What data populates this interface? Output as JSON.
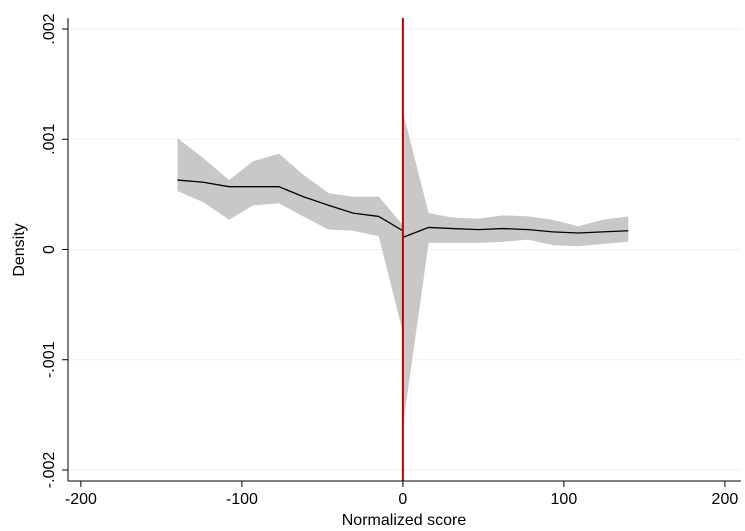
{
  "chart_data": {
    "type": "rd-density",
    "x_label": "Normalized score",
    "y_label": "Density",
    "xlim": [
      -208,
      210
    ],
    "ylim": [
      -0.0021,
      0.0021
    ],
    "xticks": [
      -200,
      -100,
      0,
      100,
      200
    ],
    "yticks": [
      {
        "value": -0.002,
        "label": "-.002"
      },
      {
        "value": -0.001,
        "label": "-.001"
      },
      {
        "value": 0,
        "label": "0"
      },
      {
        "value": 0.001,
        "label": ".001"
      },
      {
        "value": 0.002,
        "label": ".002"
      }
    ],
    "grid": true,
    "line_color": "#000000",
    "band_color": "#c8c8c8",
    "cutoff": 0,
    "cutoff_color": "#c00000",
    "groups": [
      {
        "x": [
          -140,
          -124,
          -108,
          -93,
          -77,
          -62,
          -46,
          -31,
          -15,
          0
        ],
        "values": [
          0.00063,
          0.00061,
          0.00057,
          0.00057,
          0.00057,
          0.00048,
          0.0004,
          0.00033,
          0.0003,
          0.00017
        ],
        "ci_upper": [
          0.00101,
          0.00083,
          0.00063,
          0.0008,
          0.00087,
          0.00068,
          0.00051,
          0.00048,
          0.00048,
          0.00022
        ],
        "ci_lower": [
          0.00053,
          0.00043,
          0.00027,
          0.0004,
          0.00042,
          0.0003,
          0.00018,
          0.00017,
          0.00012,
          -0.00075
        ]
      },
      {
        "x": [
          0,
          16,
          31,
          47,
          62,
          78,
          93,
          109,
          124,
          140
        ],
        "values": [
          0.00011,
          0.0002,
          0.00019,
          0.00018,
          0.00019,
          0.00018,
          0.00016,
          0.00015,
          0.00016,
          0.00017
        ],
        "ci_upper": [
          0.00125,
          0.00033,
          0.00029,
          0.00028,
          0.00031,
          0.0003,
          0.00027,
          0.00021,
          0.00027,
          0.0003
        ],
        "ci_lower": [
          -0.0016,
          6e-05,
          6e-05,
          6e-05,
          7e-05,
          9e-05,
          4e-05,
          3e-05,
          5e-05,
          7e-05
        ]
      }
    ]
  }
}
